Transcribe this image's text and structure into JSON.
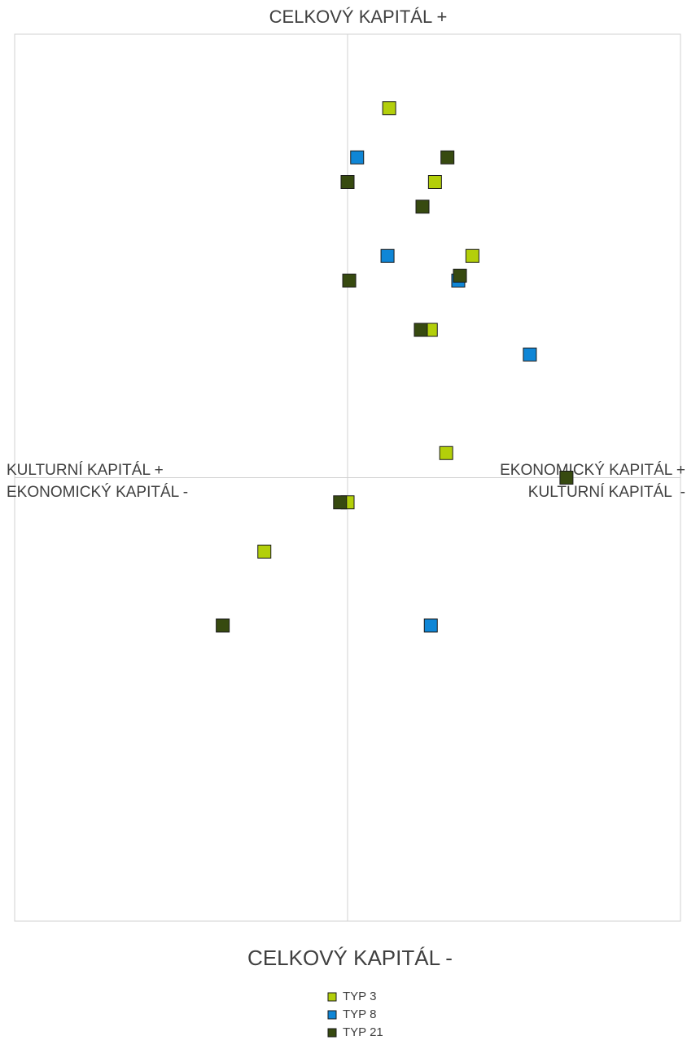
{
  "chart_data": {
    "type": "scatter",
    "title": "CELKOVÝ KAPITÁL +",
    "bottom_label": "CELKOVÝ KAPITÁL -",
    "left_label": [
      "KULTURNÍ KAPITÁL +",
      "EKONOMICKÝ KAPITÁL -"
    ],
    "right_label": [
      "EKONOMICKÝ KAPITÁL +",
      "KULTURNÍ KAPITÁL  -"
    ],
    "xlim": [
      -8,
      8
    ],
    "ylim": [
      -18,
      18
    ],
    "series": [
      {
        "name": "TYP 3",
        "color": "#b3cf0a",
        "x": [
          1.0,
          2.1,
          3.0,
          2.0,
          2.37,
          0,
          -2.0
        ],
        "values": [
          15,
          12,
          9,
          6,
          1,
          -1,
          -3
        ]
      },
      {
        "name": "TYP 8",
        "color": "#0f86d6",
        "x": [
          0.23,
          0.96,
          2.66,
          4.38,
          2.0
        ],
        "values": [
          13,
          9,
          8,
          5,
          -6
        ]
      },
      {
        "name": "TYP 21",
        "color": "#374a10",
        "x": [
          2.4,
          0,
          1.8,
          2.7,
          0.04,
          1.76,
          5.26,
          -0.18,
          -3.0
        ],
        "values": [
          13,
          12,
          11,
          8.2,
          8,
          6,
          0,
          -1,
          -6
        ]
      }
    ]
  }
}
